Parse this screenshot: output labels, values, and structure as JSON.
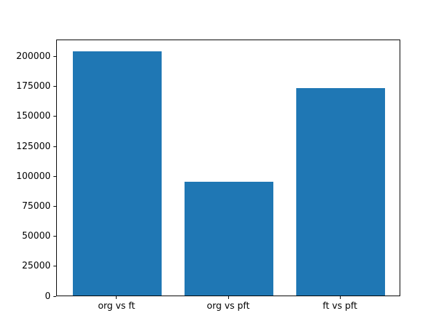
{
  "chart_data": {
    "type": "bar",
    "title": "",
    "xlabel": "",
    "ylabel": "",
    "categories": [
      "org vs ft",
      "org vs pft",
      "ft vs pft"
    ],
    "values": [
      204000,
      95000,
      173000
    ],
    "yticks": [
      0,
      25000,
      50000,
      75000,
      100000,
      125000,
      150000,
      175000,
      200000
    ],
    "ylim": [
      0,
      214200
    ],
    "bar_color": "#1f77b4",
    "spine_color": "#000000",
    "background_color": "#ffffff",
    "grid": false,
    "legend": null,
    "bar_width_fraction": 0.8
  }
}
